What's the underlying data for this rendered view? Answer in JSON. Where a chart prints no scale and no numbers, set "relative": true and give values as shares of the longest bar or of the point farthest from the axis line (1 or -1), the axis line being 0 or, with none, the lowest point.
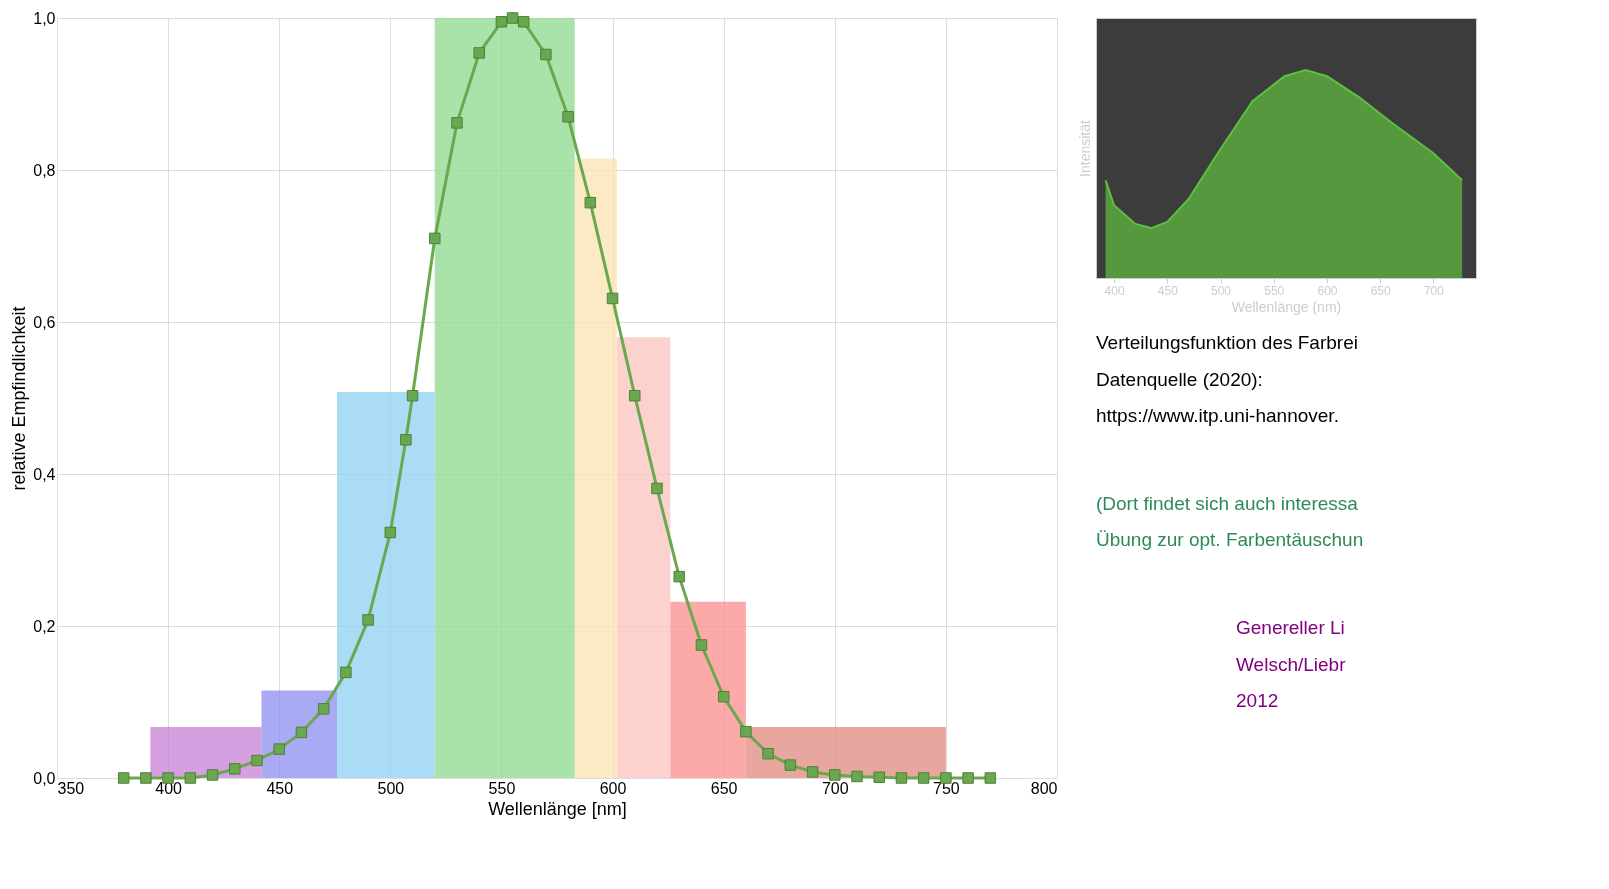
{
  "chart_data": [
    {
      "type": "line",
      "xlabel": "Wellenlänge [nm]",
      "ylabel": "relative Empfindlichkeit",
      "xlim": [
        350,
        800
      ],
      "ylim": [
        0,
        1.0
      ],
      "xticks": [
        350,
        400,
        450,
        500,
        550,
        600,
        650,
        700,
        750,
        800
      ],
      "yticks": [
        {
          "value": 0,
          "label": "0,0"
        },
        {
          "value": 0.2,
          "label": "0,2"
        },
        {
          "value": 0.4,
          "label": "0,4"
        },
        {
          "value": 0.6,
          "label": "0,6"
        },
        {
          "value": 0.8,
          "label": "0,8"
        },
        {
          "value": 1.0,
          "label": "1,0"
        }
      ],
      "grid": true,
      "series": [
        {
          "type": "histogram",
          "bins": [
            392,
            442,
            476,
            520,
            583,
            602,
            626,
            660,
            750
          ],
          "values": [
            0.067,
            0.115,
            0.508,
            1.0,
            0.815,
            0.58,
            0.232,
            0.067
          ],
          "colors": [
            "#c77fd6",
            "#8c8cf0",
            "#8fd0f2",
            "#8ed98e",
            "#fbe3b0",
            "#fbc3bd",
            "#fb8c8c",
            "#e08a7e"
          ]
        },
        {
          "type": "line",
          "color": "#6aa84f",
          "marker": "square",
          "x": [
            380,
            390,
            400,
            410,
            420,
            430,
            440,
            450,
            460,
            470,
            480,
            490,
            500,
            507,
            510,
            520,
            530,
            540,
            550,
            555,
            560,
            570,
            580,
            590,
            600,
            610,
            620,
            630,
            640,
            650,
            660,
            670,
            680,
            690,
            700,
            710,
            720,
            730,
            740,
            750,
            760,
            770
          ],
          "values": [
            0,
            0,
            0,
            0,
            0.004,
            0.012,
            0.023,
            0.038,
            0.06,
            0.091,
            0.139,
            0.208,
            0.323,
            0.445,
            0.503,
            0.71,
            0.862,
            0.954,
            0.995,
            1.0,
            0.995,
            0.952,
            0.87,
            0.757,
            0.631,
            0.503,
            0.381,
            0.265,
            0.175,
            0.107,
            0.061,
            0.032,
            0.017,
            0.008,
            0.004,
            0.002,
            0.001,
            0,
            0,
            0,
            0,
            0
          ]
        }
      ],
      "annotations": [
        "Verteilungsfunktion des Farbrei",
        "Datenquelle (2020):",
        "https://www.itp.uni-hannover.",
        "(Dort findet sich auch interessa",
        "Übung zur opt. Farbentäuschun",
        "Genereller Li",
        "Welsch/Liebr",
        "2012"
      ]
    },
    {
      "type": "area",
      "relative": true,
      "xlabel": "Wellenlänge (nm)",
      "ylabel": "Intensität",
      "xlim": [
        383,
        740
      ],
      "xticks": [
        400,
        450,
        500,
        550,
        600,
        650,
        700
      ],
      "color": "#5fbf3f",
      "x": [
        392,
        400,
        420,
        435,
        450,
        470,
        500,
        530,
        560,
        580,
        600,
        630,
        660,
        700,
        727
      ],
      "values": [
        0.47,
        0.35,
        0.26,
        0.24,
        0.27,
        0.38,
        0.62,
        0.85,
        0.97,
        1.0,
        0.97,
        0.87,
        0.75,
        0.6,
        0.47
      ]
    }
  ]
}
